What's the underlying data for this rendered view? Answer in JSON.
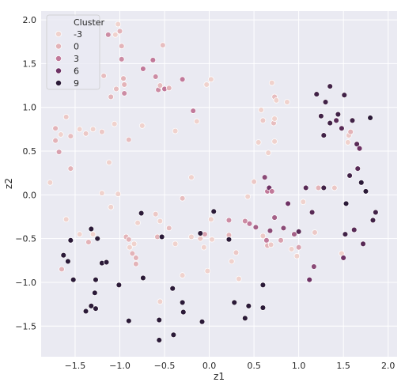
{
  "chart_data": {
    "type": "scatter",
    "title": "",
    "xlabel": "z1",
    "ylabel": "z2",
    "xlim": [
      -1.88,
      2.1
    ],
    "ylim": [
      -1.85,
      2.1
    ],
    "xticks": [
      -1.5,
      -1.0,
      -0.5,
      0.0,
      0.5,
      1.0,
      1.5,
      2.0
    ],
    "xtick_labels": [
      "−1.5",
      "−1.0",
      "−0.5",
      "0.0",
      "0.5",
      "1.0",
      "1.5",
      "2.0"
    ],
    "yticks": [
      -1.5,
      -1.0,
      -0.5,
      0.0,
      0.5,
      1.0,
      1.5,
      2.0
    ],
    "ytick_labels": [
      "−1.5",
      "−1.0",
      "−0.5",
      "0.0",
      "0.5",
      "1.0",
      "1.5",
      "2.0"
    ],
    "grid": true,
    "legend": {
      "title": "Cluster",
      "position": "top-left",
      "entries": [
        {
          "label": "-3",
          "color": "#f0d2cd"
        },
        {
          "label": "0",
          "color": "#e3b3b8"
        },
        {
          "label": "3",
          "color": "#c1799a"
        },
        {
          "label": "6",
          "color": "#6e3265"
        },
        {
          "label": "9",
          "color": "#2b1a38"
        }
      ]
    },
    "points": [
      {
        "x": -1.78,
        "y": 0.14,
        "c": -3
      },
      {
        "x": -1.72,
        "y": 0.76,
        "c": 0
      },
      {
        "x": -1.72,
        "y": 0.62,
        "c": 0
      },
      {
        "x": -1.68,
        "y": 0.49,
        "c": 1
      },
      {
        "x": -1.66,
        "y": 0.69,
        "c": -3
      },
      {
        "x": -1.6,
        "y": 0.89,
        "c": -2
      },
      {
        "x": -1.55,
        "y": 0.3,
        "c": 0
      },
      {
        "x": -1.55,
        "y": 0.67,
        "c": -1
      },
      {
        "x": -1.45,
        "y": 0.75,
        "c": -3
      },
      {
        "x": -1.38,
        "y": 0.7,
        "c": -2
      },
      {
        "x": -1.3,
        "y": 0.75,
        "c": -3
      },
      {
        "x": -1.2,
        "y": 0.02,
        "c": -3
      },
      {
        "x": -1.2,
        "y": 0.72,
        "c": -2
      },
      {
        "x": -1.18,
        "y": 1.36,
        "c": -1
      },
      {
        "x": -1.13,
        "y": 1.83,
        "c": 2
      },
      {
        "x": -1.12,
        "y": 0.37,
        "c": -3
      },
      {
        "x": -1.1,
        "y": -0.14,
        "c": -3
      },
      {
        "x": -1.1,
        "y": 1.12,
        "c": 0
      },
      {
        "x": -1.06,
        "y": 0.81,
        "c": -3
      },
      {
        "x": -1.05,
        "y": 1.83,
        "c": -3
      },
      {
        "x": -1.04,
        "y": 1.21,
        "c": -1
      },
      {
        "x": -1.02,
        "y": 1.95,
        "c": -3
      },
      {
        "x": -1.02,
        "y": 0.01,
        "c": -3
      },
      {
        "x": -1.0,
        "y": 1.87,
        "c": 0
      },
      {
        "x": -0.98,
        "y": 1.7,
        "c": 0
      },
      {
        "x": -0.98,
        "y": 1.55,
        "c": 2
      },
      {
        "x": -0.96,
        "y": 1.33,
        "c": 0
      },
      {
        "x": -0.95,
        "y": 1.26,
        "c": 0
      },
      {
        "x": -0.95,
        "y": 1.16,
        "c": 2
      },
      {
        "x": -0.93,
        "y": -0.48,
        "c": 0
      },
      {
        "x": -0.9,
        "y": 0.63,
        "c": -1
      },
      {
        "x": -0.9,
        "y": -0.51,
        "c": 0
      },
      {
        "x": -0.89,
        "y": -0.6,
        "c": -3
      },
      {
        "x": -0.86,
        "y": -0.67,
        "c": 0
      },
      {
        "x": -0.84,
        "y": -0.56,
        "c": -3
      },
      {
        "x": -0.82,
        "y": -0.79,
        "c": 0
      },
      {
        "x": -0.82,
        "y": -0.72,
        "c": 0
      },
      {
        "x": -0.8,
        "y": -0.32,
        "c": -3
      },
      {
        "x": -0.75,
        "y": 0.79,
        "c": -3
      },
      {
        "x": -0.74,
        "y": 1.44,
        "c": 3
      },
      {
        "x": -0.63,
        "y": 1.54,
        "c": 3
      },
      {
        "x": -0.6,
        "y": 1.35,
        "c": 2
      },
      {
        "x": -0.57,
        "y": 1.2,
        "c": 2
      },
      {
        "x": -0.55,
        "y": 1.25,
        "c": -1
      },
      {
        "x": -0.52,
        "y": 1.71,
        "c": -1
      },
      {
        "x": -0.5,
        "y": 1.21,
        "c": 3
      },
      {
        "x": -0.45,
        "y": 1.22,
        "c": 0
      },
      {
        "x": -0.38,
        "y": 0.73,
        "c": -3
      },
      {
        "x": -0.3,
        "y": 1.32,
        "c": 3
      },
      {
        "x": -0.3,
        "y": -0.04,
        "c": -1
      },
      {
        "x": -0.2,
        "y": 0.2,
        "c": -3
      },
      {
        "x": -0.18,
        "y": 0.96,
        "c": 3
      },
      {
        "x": -0.14,
        "y": 0.84,
        "c": -3
      },
      {
        "x": -0.03,
        "y": 1.26,
        "c": -3
      },
      {
        "x": 0.02,
        "y": 1.32,
        "c": -3
      },
      {
        "x": -0.6,
        "y": -0.22,
        "c": -2
      },
      {
        "x": -0.58,
        "y": -0.48,
        "c": 0
      },
      {
        "x": -0.55,
        "y": -0.3,
        "c": -3
      },
      {
        "x": -0.55,
        "y": -1.22,
        "c": -3
      },
      {
        "x": -0.45,
        "y": -0.38,
        "c": -1
      },
      {
        "x": -0.38,
        "y": -0.56,
        "c": -3
      },
      {
        "x": -0.3,
        "y": -0.92,
        "c": -3
      },
      {
        "x": -0.2,
        "y": -0.48,
        "c": -3
      },
      {
        "x": -0.1,
        "y": -0.5,
        "c": -2
      },
      {
        "x": -0.06,
        "y": -0.6,
        "c": -3
      },
      {
        "x": -0.05,
        "y": -0.45,
        "c": 1
      },
      {
        "x": -0.02,
        "y": -0.87,
        "c": -3
      },
      {
        "x": 0.02,
        "y": -0.28,
        "c": -3
      },
      {
        "x": 0.03,
        "y": -0.51,
        "c": -3
      },
      {
        "x": 0.22,
        "y": -0.46,
        "c": 0
      },
      {
        "x": 0.22,
        "y": -0.29,
        "c": 2
      },
      {
        "x": 0.25,
        "y": -0.76,
        "c": -3
      },
      {
        "x": 0.3,
        "y": -0.66,
        "c": -2
      },
      {
        "x": 0.33,
        "y": -0.96,
        "c": -3
      },
      {
        "x": 0.4,
        "y": -0.3,
        "c": 2
      },
      {
        "x": 0.43,
        "y": -0.02,
        "c": -3
      },
      {
        "x": 0.45,
        "y": -0.33,
        "c": 3
      },
      {
        "x": 0.5,
        "y": 0.15,
        "c": -2
      },
      {
        "x": 0.52,
        "y": -0.37,
        "c": 4
      },
      {
        "x": 0.55,
        "y": 0.6,
        "c": -3
      },
      {
        "x": 0.58,
        "y": 0.97,
        "c": -3
      },
      {
        "x": 0.6,
        "y": -0.47,
        "c": -2
      },
      {
        "x": 0.6,
        "y": 0.85,
        "c": -2
      },
      {
        "x": 0.62,
        "y": 0.2,
        "c": 5
      },
      {
        "x": 0.64,
        "y": -0.52,
        "c": 3
      },
      {
        "x": 0.65,
        "y": -0.58,
        "c": 0
      },
      {
        "x": 0.65,
        "y": 0.04,
        "c": 3
      },
      {
        "x": 0.66,
        "y": 0.48,
        "c": -3
      },
      {
        "x": 0.67,
        "y": 0.08,
        "c": 6
      },
      {
        "x": 0.68,
        "y": -0.41,
        "c": 5
      },
      {
        "x": 0.69,
        "y": -0.57,
        "c": -2
      },
      {
        "x": 0.7,
        "y": 0.04,
        "c": 3
      },
      {
        "x": 0.7,
        "y": 1.28,
        "c": -3
      },
      {
        "x": 0.72,
        "y": 0.82,
        "c": -1
      },
      {
        "x": 0.73,
        "y": 0.61,
        "c": -3
      },
      {
        "x": 0.73,
        "y": 0.87,
        "c": -3
      },
      {
        "x": 0.73,
        "y": 1.12,
        "c": -1
      },
      {
        "x": 0.73,
        "y": -0.26,
        "c": 4
      },
      {
        "x": 0.75,
        "y": 1.08,
        "c": -3
      },
      {
        "x": 0.8,
        "y": -0.52,
        "c": 1
      },
      {
        "x": 0.83,
        "y": -0.38,
        "c": 5
      },
      {
        "x": 0.87,
        "y": 1.06,
        "c": -3
      },
      {
        "x": 0.88,
        "y": -0.1,
        "c": 6
      },
      {
        "x": 0.92,
        "y": -0.62,
        "c": -3
      },
      {
        "x": 0.95,
        "y": -0.45,
        "c": 4
      },
      {
        "x": 0.98,
        "y": -0.7,
        "c": -3
      },
      {
        "x": 1.0,
        "y": -0.6,
        "c": 1
      },
      {
        "x": 1.0,
        "y": -0.42,
        "c": 7
      },
      {
        "x": 1.05,
        "y": -0.08,
        "c": -3
      },
      {
        "x": 1.08,
        "y": 0.08,
        "c": 7
      },
      {
        "x": 1.12,
        "y": -0.97,
        "c": 6
      },
      {
        "x": 1.15,
        "y": -0.2,
        "c": 7
      },
      {
        "x": 1.17,
        "y": -0.82,
        "c": 5
      },
      {
        "x": 1.18,
        "y": -0.43,
        "c": -2
      },
      {
        "x": 1.2,
        "y": 1.15,
        "c": 8
      },
      {
        "x": 1.22,
        "y": 0.08,
        "c": 0
      },
      {
        "x": 1.25,
        "y": 0.9,
        "c": 8
      },
      {
        "x": 1.28,
        "y": 0.08,
        "c": 8
      },
      {
        "x": 1.28,
        "y": 0.68,
        "c": 8
      },
      {
        "x": 1.3,
        "y": 1.06,
        "c": 8
      },
      {
        "x": 1.35,
        "y": 1.24,
        "c": 8
      },
      {
        "x": 1.35,
        "y": 0.82,
        "c": 8
      },
      {
        "x": 1.4,
        "y": 0.08,
        "c": -2
      },
      {
        "x": 1.42,
        "y": 0.85,
        "c": 7
      },
      {
        "x": 1.44,
        "y": 0.92,
        "c": 8
      },
      {
        "x": 1.48,
        "y": 0.76,
        "c": 7
      },
      {
        "x": 1.48,
        "y": -0.67,
        "c": -3
      },
      {
        "x": 1.5,
        "y": -0.72,
        "c": 6
      },
      {
        "x": 1.51,
        "y": 1.14,
        "c": 8
      },
      {
        "x": 1.52,
        "y": -0.45,
        "c": 8
      },
      {
        "x": 1.53,
        "y": -0.1,
        "c": 9
      },
      {
        "x": 1.55,
        "y": 0.6,
        "c": -3
      },
      {
        "x": 1.56,
        "y": 0.68,
        "c": -2
      },
      {
        "x": 1.57,
        "y": 0.22,
        "c": 8
      },
      {
        "x": 1.58,
        "y": 0.72,
        "c": 0
      },
      {
        "x": 1.6,
        "y": 0.85,
        "c": 8
      },
      {
        "x": 1.62,
        "y": -0.4,
        "c": 7
      },
      {
        "x": 1.65,
        "y": 0.58,
        "c": 7
      },
      {
        "x": 1.66,
        "y": 0.3,
        "c": 7
      },
      {
        "x": 1.68,
        "y": 0.53,
        "c": 6
      },
      {
        "x": 1.7,
        "y": 0.14,
        "c": 9
      },
      {
        "x": 1.72,
        "y": -0.56,
        "c": 7
      },
      {
        "x": 1.75,
        "y": 0.04,
        "c": 9
      },
      {
        "x": 1.8,
        "y": 0.88,
        "c": 9
      },
      {
        "x": 1.83,
        "y": -0.29,
        "c": 8
      },
      {
        "x": 1.86,
        "y": -0.2,
        "c": 8
      },
      {
        "x": -1.6,
        "y": -0.28,
        "c": -3
      },
      {
        "x": -1.55,
        "y": -0.52,
        "c": 9
      },
      {
        "x": -1.63,
        "y": -0.69,
        "c": 9
      },
      {
        "x": -1.58,
        "y": -0.76,
        "c": 9
      },
      {
        "x": -1.65,
        "y": -0.85,
        "c": 0
      },
      {
        "x": -1.52,
        "y": -0.97,
        "c": 9
      },
      {
        "x": -1.45,
        "y": -0.45,
        "c": -3
      },
      {
        "x": -1.35,
        "y": -0.54,
        "c": 0
      },
      {
        "x": -1.32,
        "y": -0.39,
        "c": 9
      },
      {
        "x": -1.3,
        "y": -0.45,
        "c": -3
      },
      {
        "x": -1.25,
        "y": -0.5,
        "c": 9
      },
      {
        "x": -1.2,
        "y": -0.78,
        "c": 9
      },
      {
        "x": -1.15,
        "y": -0.77,
        "c": 9
      },
      {
        "x": -1.27,
        "y": -0.97,
        "c": 9
      },
      {
        "x": -1.28,
        "y": -1.12,
        "c": 9
      },
      {
        "x": -1.32,
        "y": -1.27,
        "c": 9
      },
      {
        "x": -1.38,
        "y": -1.33,
        "c": 9
      },
      {
        "x": -1.27,
        "y": -1.3,
        "c": 9
      },
      {
        "x": -1.01,
        "y": -1.03,
        "c": 9
      },
      {
        "x": -0.9,
        "y": -1.44,
        "c": 9
      },
      {
        "x": -0.74,
        "y": -0.95,
        "c": 9
      },
      {
        "x": -0.76,
        "y": -0.21,
        "c": 9
      },
      {
        "x": -0.53,
        "y": -0.48,
        "c": 9
      },
      {
        "x": -0.56,
        "y": -1.43,
        "c": 9
      },
      {
        "x": -0.56,
        "y": -1.66,
        "c": 9
      },
      {
        "x": -0.4,
        "y": -1.6,
        "c": 9
      },
      {
        "x": -0.41,
        "y": -1.07,
        "c": 9
      },
      {
        "x": -0.3,
        "y": -1.23,
        "c": 9
      },
      {
        "x": -0.29,
        "y": -1.34,
        "c": 9
      },
      {
        "x": -0.1,
        "y": -0.44,
        "c": 9
      },
      {
        "x": -0.08,
        "y": -1.45,
        "c": 9
      },
      {
        "x": 0.05,
        "y": -0.19,
        "c": 9
      },
      {
        "x": 0.22,
        "y": -0.51,
        "c": 9
      },
      {
        "x": 0.28,
        "y": -1.23,
        "c": 9
      },
      {
        "x": 0.4,
        "y": -1.41,
        "c": 9
      },
      {
        "x": 0.44,
        "y": -1.27,
        "c": 9
      },
      {
        "x": 0.6,
        "y": -1.29,
        "c": 9
      },
      {
        "x": 0.6,
        "y": -1.03,
        "c": 9
      }
    ]
  }
}
